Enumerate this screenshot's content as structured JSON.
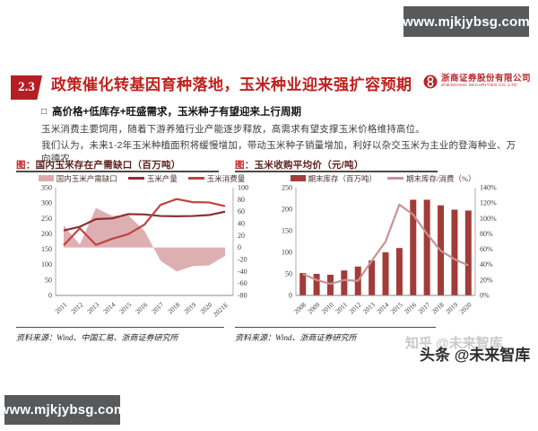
{
  "header": {
    "site_badge": "www.mjkjybsg.com"
  },
  "footer": {
    "site_badge": "www.mjkjybsg.com"
  },
  "colors": {
    "accent_red": "#c0211e",
    "section_box_red": "#b51f24",
    "badge_gray": "#58595b",
    "area_pink": "#dcabad",
    "production_line_dark_red": "#8c2f35",
    "consumption_line_red": "#c0433f",
    "bar_dark_red": "#a13c39",
    "ratio_line_rose": "#c99196"
  },
  "slide": {
    "section_number": "2.3",
    "title": "政策催化转基因育种落地，玉米种业迎来强扩容预期",
    "logo": {
      "cn": "浙商证券股份有限公司",
      "en": "ZHESHANG SECURITIES CO.,LTD"
    },
    "bullet_marker": "□",
    "bullet": "高价格+低库存+旺盛需求，玉米种子有望迎来上行周期",
    "paragraphs": {
      "p1": "玉米消费主要饲用，随着下游养殖行业产能逐步释放，高需求有望支撑玉米价格维持高位。",
      "p2": "我们认为，未来1-2年玉米种植面积将缓慢增加，带动玉米种子销量增加，利好以杂交玉米为主业的登海种业、万向德农。"
    }
  },
  "chart_data": [
    {
      "type": "area-line-combo",
      "title_prefix": "图：",
      "title": "国内玉米存在产需缺口（百万吨）",
      "categories": [
        "2011",
        "2012",
        "2013",
        "2014",
        "2015",
        "2016",
        "2017",
        "2018",
        "2019",
        "2020",
        "2021E"
      ],
      "left_axis": {
        "min": 0,
        "max": 350,
        "ticks": [
          "350",
          "300",
          "250",
          "200",
          "150",
          "100",
          "50",
          "0"
        ]
      },
      "right_axis": {
        "min": -80,
        "max": 100,
        "ticks": [
          "100",
          "80",
          "60",
          "40",
          "20",
          "0",
          "-20",
          "-40",
          "-60",
          "-80"
        ]
      },
      "legend_position": "top",
      "grid": false,
      "series": [
        {
          "name": "国内玉米产需缺口",
          "type": "area",
          "axis": "right",
          "color": "#dcabad",
          "values": [
            37,
            5,
            66,
            53,
            54,
            28,
            -22,
            -40,
            -31,
            -30,
            -14
          ]
        },
        {
          "name": "玉米产量",
          "type": "line",
          "axis": "left",
          "color": "#8c2f35",
          "values": [
            211,
            223,
            248,
            250,
            264,
            263,
            258,
            257,
            258,
            261,
            272
          ]
        },
        {
          "name": "玉米消费量",
          "type": "line",
          "axis": "left",
          "color": "#c0433f",
          "values": [
            163,
            218,
            164,
            184,
            199,
            230,
            294,
            313,
            303,
            302,
            290
          ]
        }
      ],
      "source": "资料来源：Wind、中国汇易、浙商证券研究所"
    },
    {
      "type": "bar-line-combo",
      "title_prefix": "图：",
      "title": "玉米收购平均价（元/吨）",
      "categories": [
        "2008",
        "2009",
        "2010",
        "2011",
        "2012",
        "2013",
        "2014",
        "2015",
        "2016",
        "2017",
        "2018",
        "2019",
        "2020"
      ],
      "left_axis": {
        "min": 0,
        "max": 250,
        "ticks": [
          "250",
          "200",
          "150",
          "100",
          "50",
          "0"
        ]
      },
      "right_axis": {
        "min": 0,
        "max": 140,
        "ticks": [
          "140%",
          "120%",
          "100%",
          "80%",
          "60%",
          "40%",
          "20%",
          "0%"
        ]
      },
      "legend_position": "top",
      "grid": false,
      "series": [
        {
          "name": "期末库存（百万吨）",
          "type": "bar",
          "axis": "left",
          "color": "#a13c39",
          "values": [
            52,
            50,
            48,
            58,
            67,
            81,
            100,
            110,
            222,
            222,
            209,
            199,
            197
          ]
        },
        {
          "name": "期末库存/消费（%）",
          "type": "line",
          "axis": "right",
          "color": "#c99196",
          "values": [
            28,
            20,
            15,
            20,
            19,
            45,
            70,
            118,
            105,
            80,
            58,
            47,
            39
          ]
        }
      ],
      "source": "资料来源：Wind、浙商证券研究所"
    }
  ],
  "watermarks": {
    "light": "知乎 @未来智库",
    "dark": "头条 @未来智库"
  }
}
